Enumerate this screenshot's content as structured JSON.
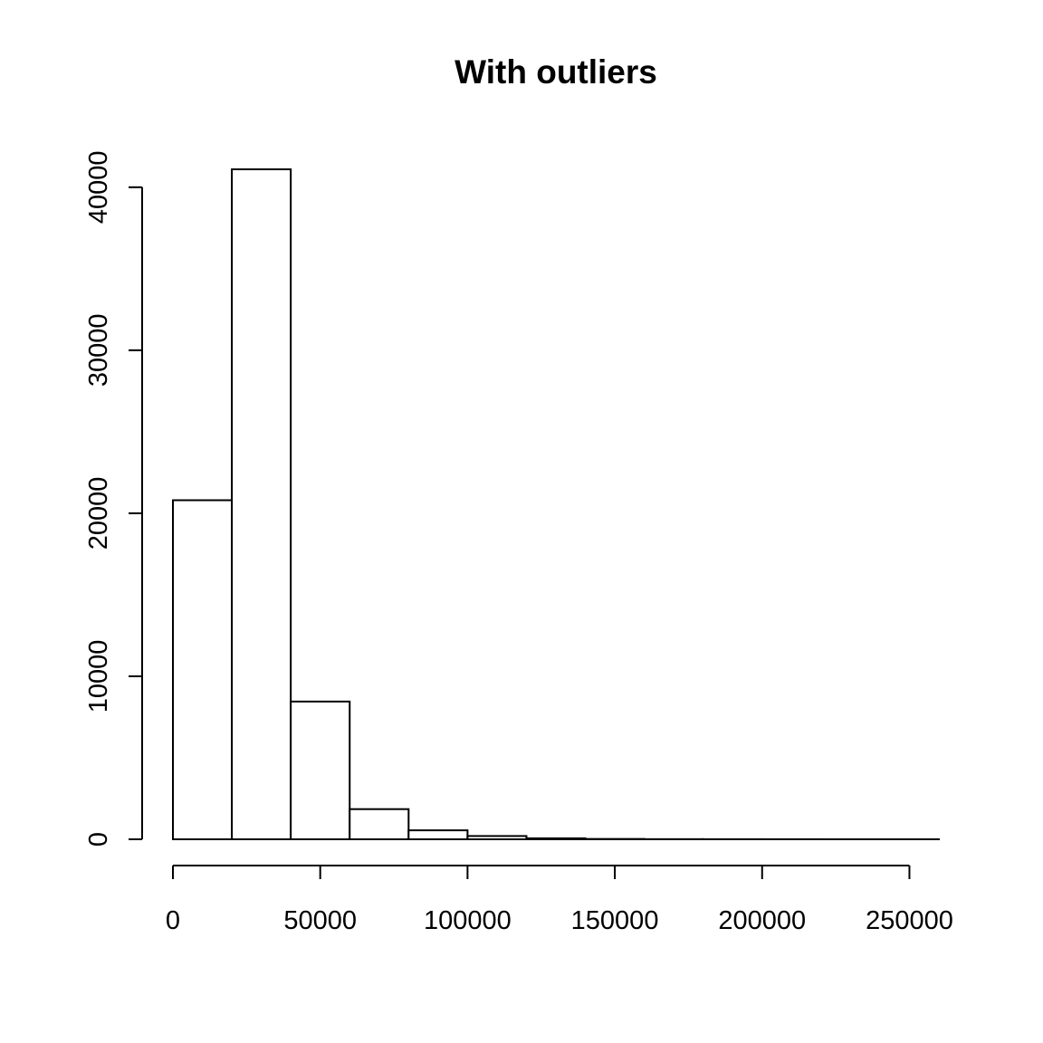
{
  "chart_data": {
    "type": "bar",
    "subtype": "histogram",
    "title": "With outliers",
    "xlabel": "",
    "ylabel": "",
    "bin_edges": [
      0,
      20000,
      40000,
      60000,
      80000,
      100000,
      120000,
      140000,
      160000,
      180000,
      200000,
      220000,
      240000,
      260000
    ],
    "values": [
      20800,
      41100,
      8450,
      1850,
      550,
      200,
      60,
      20,
      8,
      5,
      3,
      2,
      1
    ],
    "xlim": [
      0,
      260000
    ],
    "ylim": [
      0,
      41100
    ],
    "x_ticks": [
      0,
      50000,
      100000,
      150000,
      200000,
      250000
    ],
    "x_tick_labels": [
      "0",
      "50000",
      "100000",
      "150000",
      "200000",
      "250000"
    ],
    "y_ticks": [
      0,
      10000,
      20000,
      30000,
      40000
    ],
    "y_tick_labels": [
      "0",
      "10000",
      "20000",
      "30000",
      "40000"
    ],
    "grid": false,
    "bar_fill": "#ffffff",
    "bar_stroke": "#000000"
  }
}
